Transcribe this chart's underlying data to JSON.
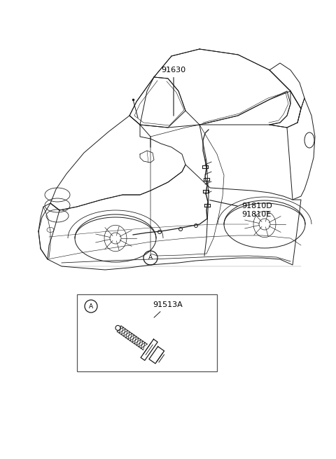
{
  "bg_color": "#ffffff",
  "text_color": "#000000",
  "line_color": "#1a1a1a",
  "fig_width": 4.8,
  "fig_height": 6.55,
  "dpi": 100,
  "label_91630": "91630",
  "label_91810D": "91810D",
  "label_91810E": "91810E",
  "label_91513A": "91513A",
  "label_A": "A",
  "font_size": 8,
  "car_lw": 0.7,
  "detail_lw": 0.5
}
